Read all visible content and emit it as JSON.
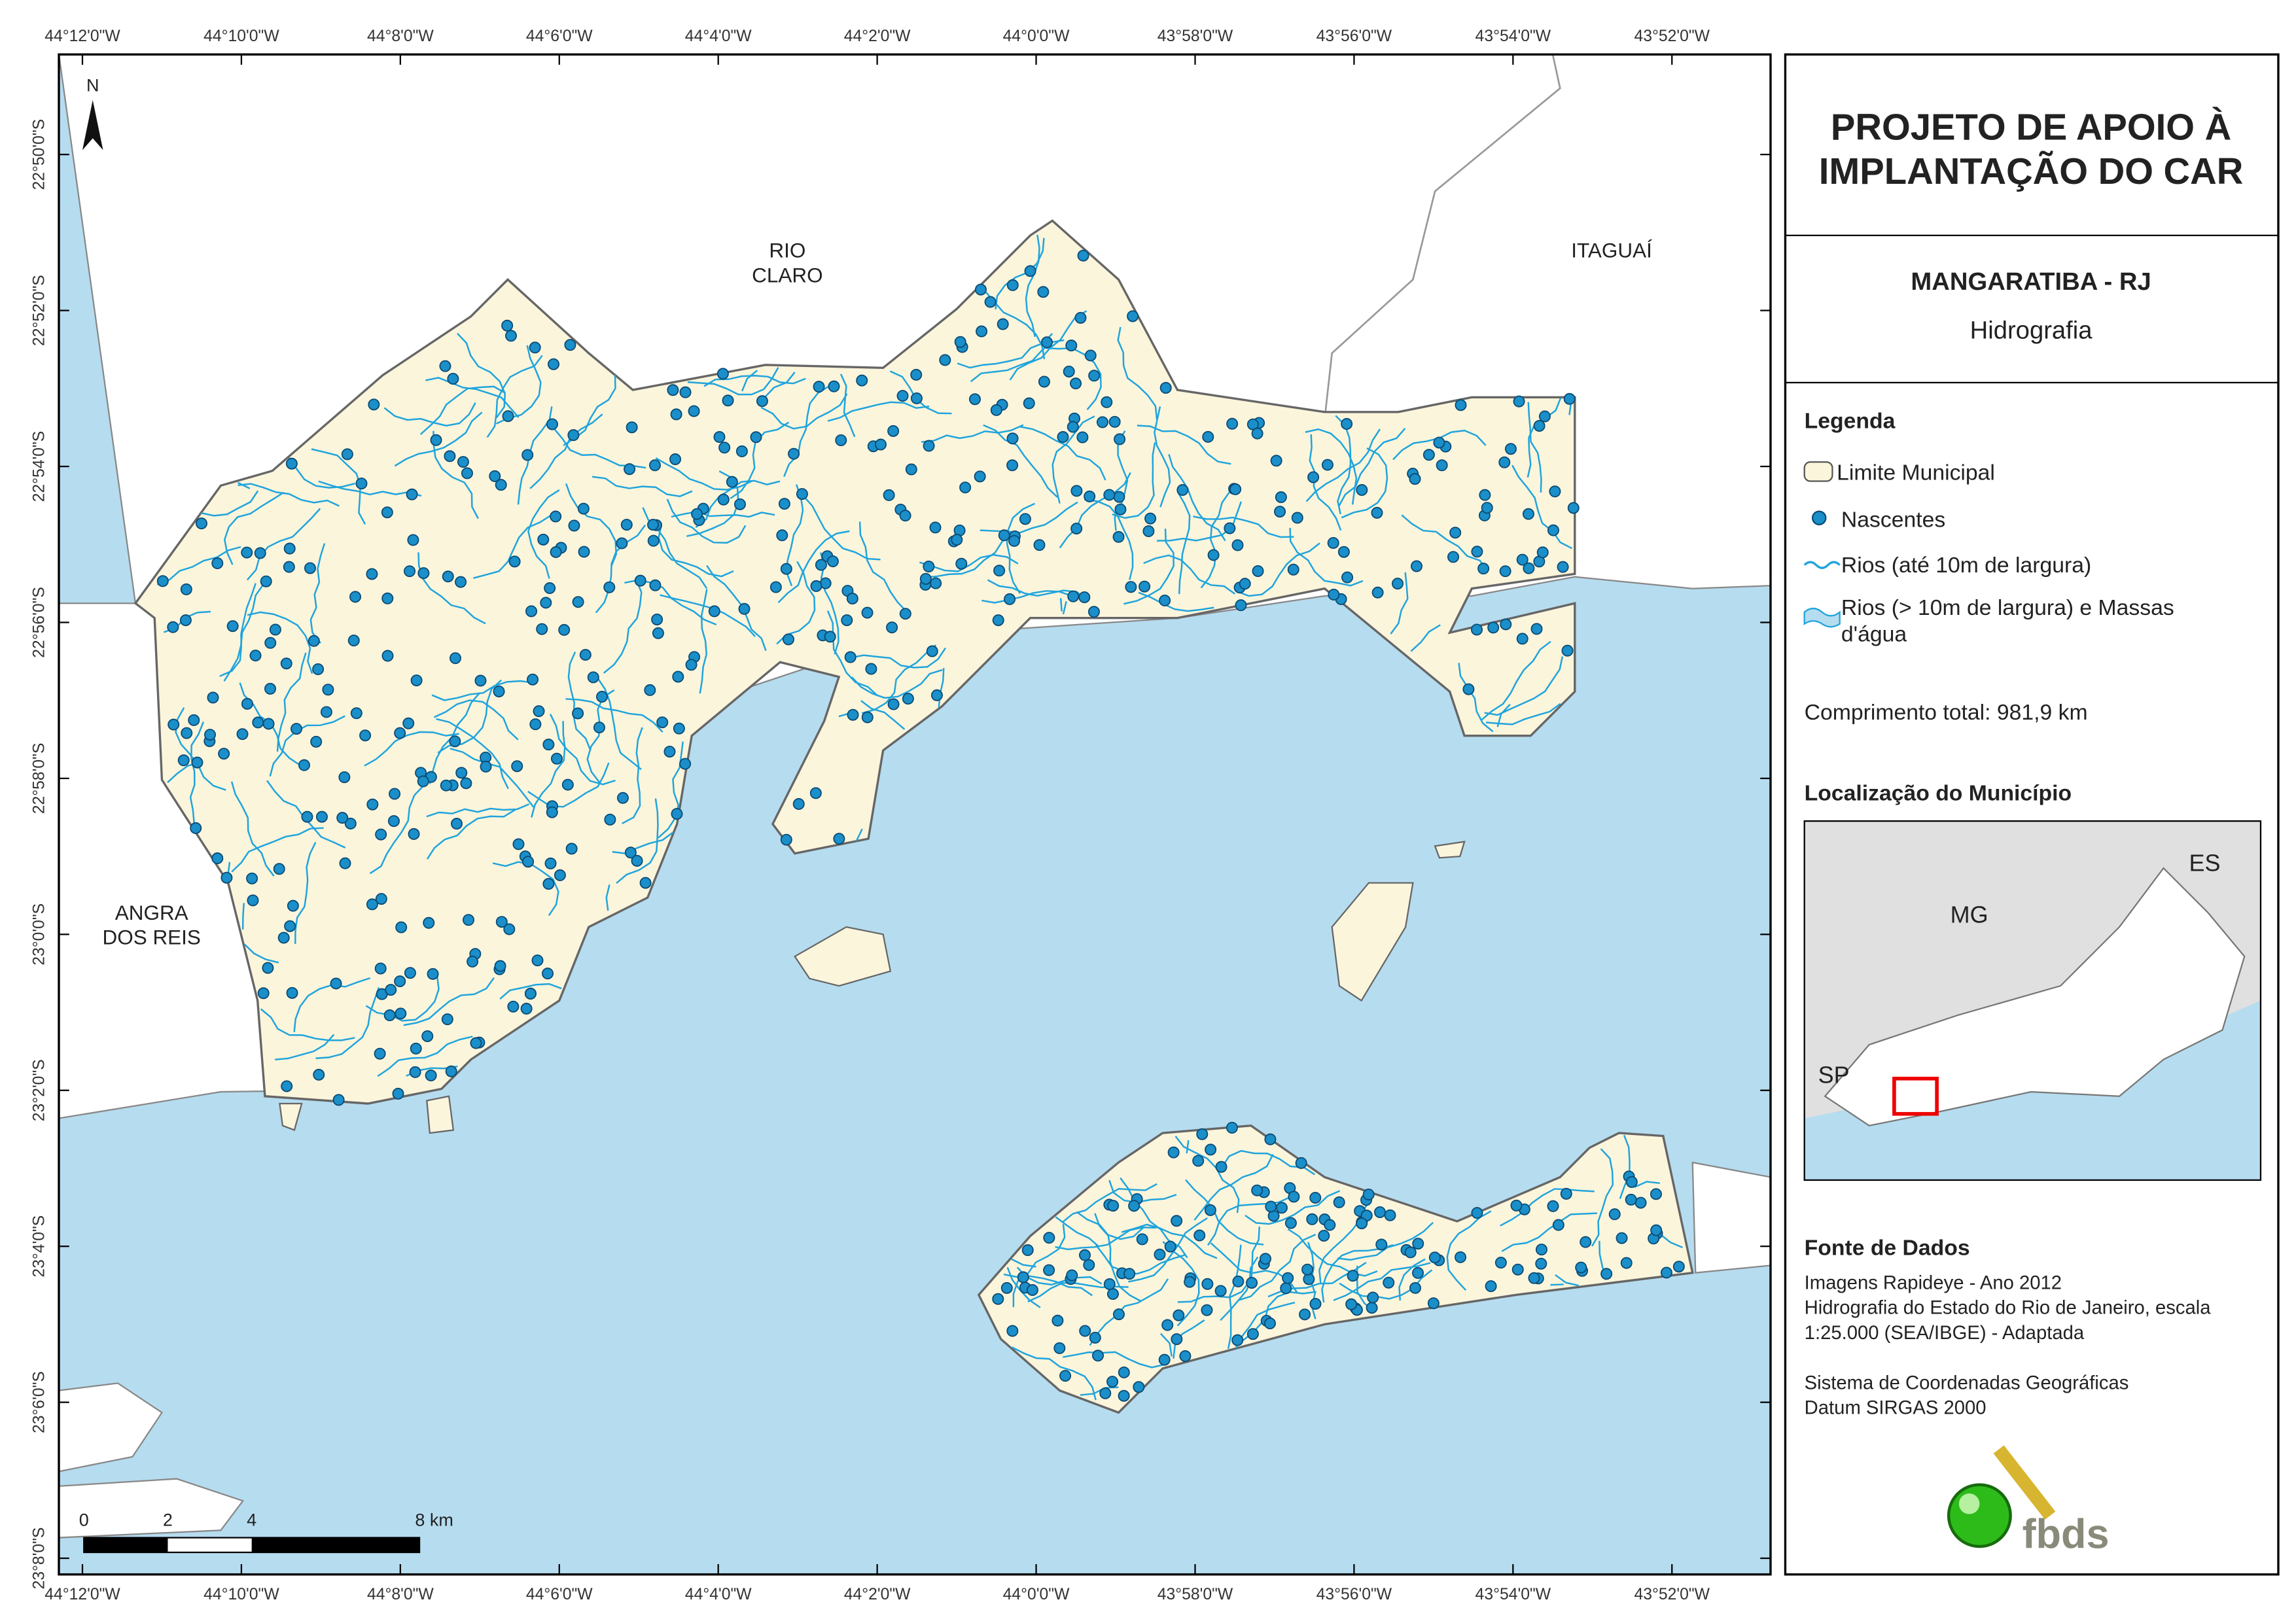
{
  "frame": {
    "lon_labels": [
      "44°12'0\"W",
      "44°10'0\"W",
      "44°8'0\"W",
      "44°6'0\"W",
      "44°4'0\"W",
      "44°2'0\"W",
      "44°0'0\"W",
      "43°58'0\"W",
      "43°56'0\"W",
      "43°54'0\"W",
      "43°52'0\"W"
    ],
    "lat_labels": [
      "22°50'0\"S",
      "22°52'0\"S",
      "22°54'0\"S",
      "22°56'0\"S",
      "22°58'0\"S",
      "23°0'0\"S",
      "23°2'0\"S",
      "23°4'0\"S",
      "23°6'0\"S",
      "23°8'0\"S"
    ]
  },
  "map": {
    "north": "N",
    "places": [
      "RIO CLARO",
      "ITAGUAÍ",
      "ANGRA DOS REIS"
    ],
    "scale_labels": [
      "0",
      "2",
      "4",
      "8 km"
    ]
  },
  "panel": {
    "title": "PROJETO DE APOIO À IMPLANTAÇÃO DO CAR",
    "municipality": "MANGARATIBA - RJ",
    "theme": "Hidrografia",
    "legend": {
      "heading": "Legenda",
      "items": [
        "Limite Municipal",
        "Nascentes",
        "Rios (até 10m de largura)",
        "Rios (> 10m de largura) e Massas d'água"
      ]
    },
    "length": "Comprimento total: 981,9 km",
    "location": {
      "heading": "Localização do Município",
      "labels": [
        "ES",
        "MG",
        "SP"
      ]
    },
    "sources": {
      "heading": "Fonte de Dados",
      "lines": [
        "Imagens Rapideye - Ano 2012",
        "Hidrografia do Estado do Rio de Janeiro, escala",
        "1:25.000 (SEA/IBGE) - Adaptada",
        "Sistema de Coordenadas Geográficas",
        "Datum SIRGAS 2000"
      ]
    },
    "logo": "fbds"
  }
}
